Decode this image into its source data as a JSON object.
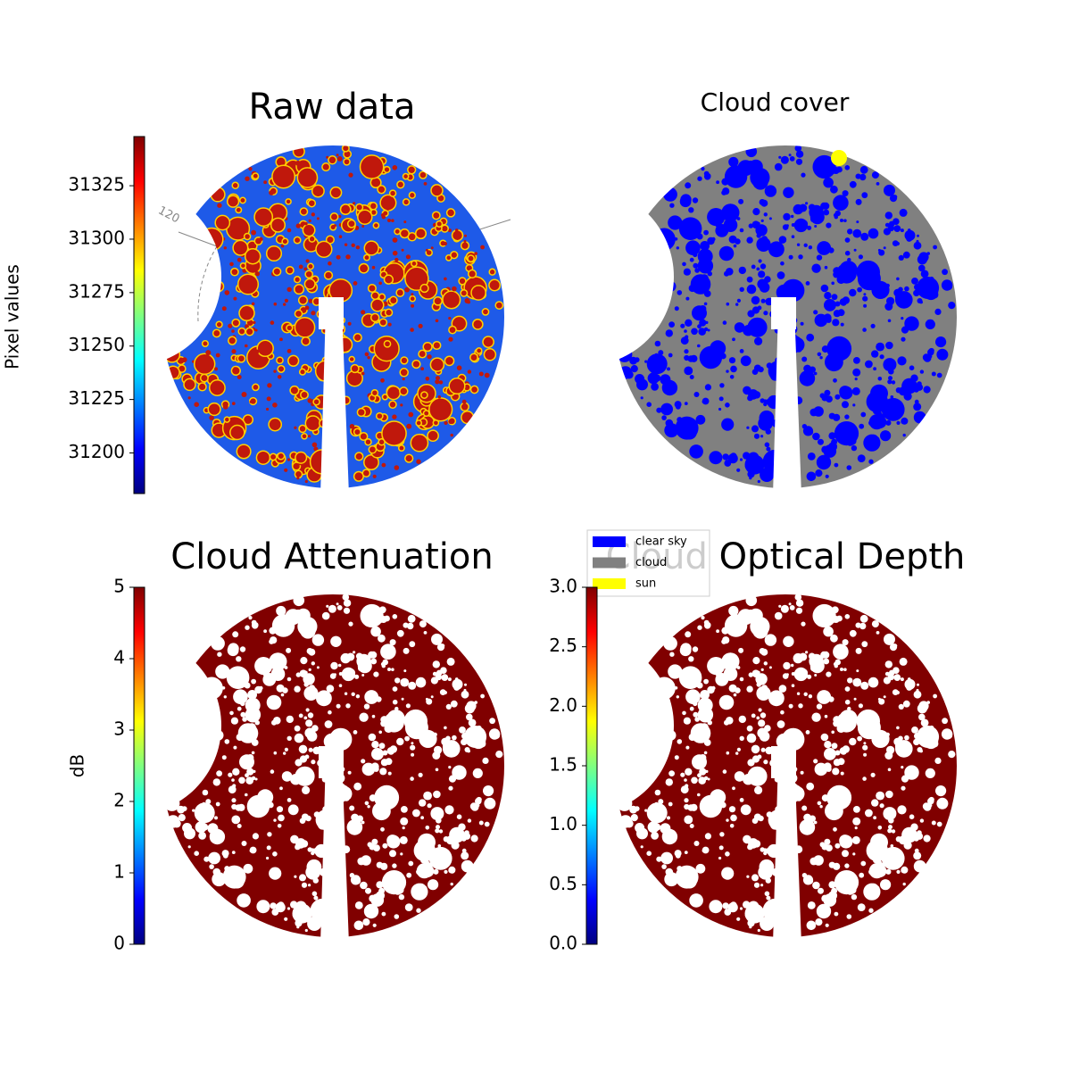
{
  "chart_data": [
    {
      "type": "sky-image",
      "title": "Raw data",
      "colorbar_label": "Pixel values",
      "colormap": "jet",
      "clim": [
        31181,
        31348
      ],
      "cticks": [
        31200,
        31225,
        31250,
        31275,
        31300,
        31325
      ],
      "annotation": "120"
    },
    {
      "type": "sky-classes",
      "title": "Cloud cover",
      "series": [
        {
          "name": "clear sky",
          "color": "#0000ff"
        },
        {
          "name": "cloud",
          "color": "#808080"
        },
        {
          "name": "sun",
          "color": "#ffff00"
        }
      ]
    },
    {
      "type": "sky-image",
      "title": "Cloud Attenuation",
      "colorbar_label": "dB",
      "colormap": "jet",
      "clim": [
        0,
        5
      ],
      "cticks": [
        0,
        1,
        2,
        3,
        4,
        5
      ]
    },
    {
      "type": "sky-image",
      "title": "Cloud Optical Depth",
      "colormap": "jet",
      "clim": [
        0,
        3
      ],
      "cticks": [
        {
          "value": 0,
          "label": "0.0"
        },
        0.5,
        {
          "value": 1,
          "label": "1.0"
        },
        1.5,
        {
          "value": 2,
          "label": "2.0"
        },
        2.5,
        {
          "value": 3,
          "label": "3.0"
        }
      ]
    }
  ]
}
